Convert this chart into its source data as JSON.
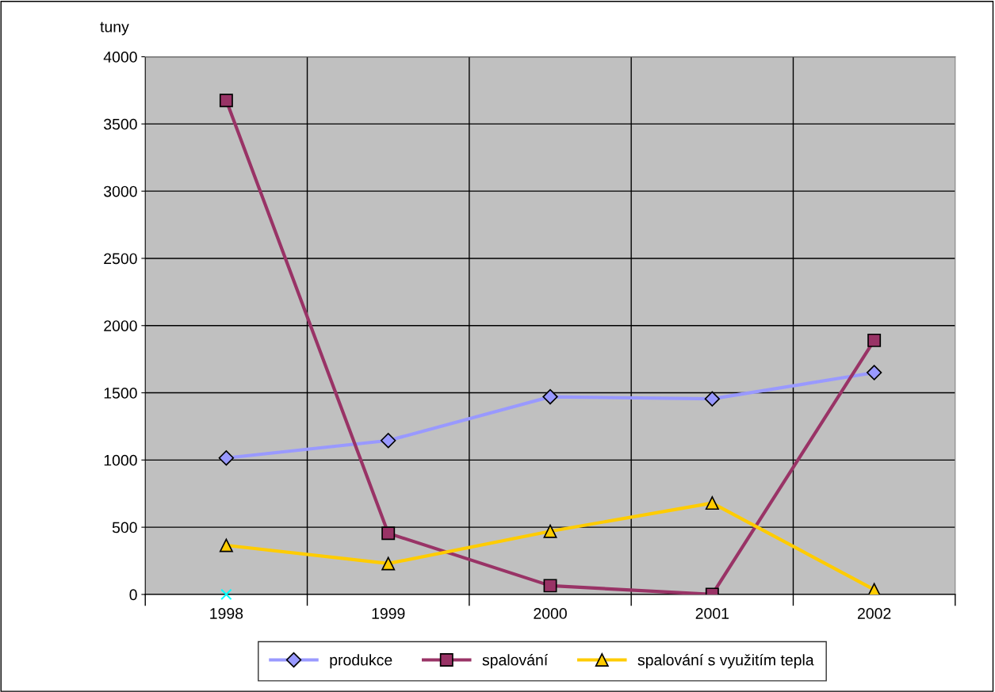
{
  "chart_data": {
    "type": "line",
    "ylabel": "tuny",
    "categories": [
      "1998",
      "1999",
      "2000",
      "2001",
      "2002"
    ],
    "series": [
      {
        "name": "produkce",
        "color": "#9999ff",
        "marker": "diamond",
        "values": [
          1015,
          1145,
          1470,
          1455,
          1650
        ]
      },
      {
        "name": "spalování",
        "color": "#993366",
        "marker": "square",
        "values": [
          3675,
          455,
          65,
          0,
          1890
        ]
      },
      {
        "name": "spalování s využitím tepla",
        "color": "#ffcc00",
        "marker": "triangle",
        "values": [
          365,
          230,
          470,
          680,
          35
        ]
      },
      {
        "type": "scatter",
        "color": "#00ffff",
        "marker": "cross",
        "values": [
          0,
          null,
          null,
          null,
          null
        ]
      }
    ],
    "ylim": [
      0,
      4000
    ],
    "yticks": [
      0,
      500,
      1000,
      1500,
      2000,
      2500,
      3000,
      3500,
      4000
    ],
    "grid": true,
    "legend": "bottom"
  }
}
